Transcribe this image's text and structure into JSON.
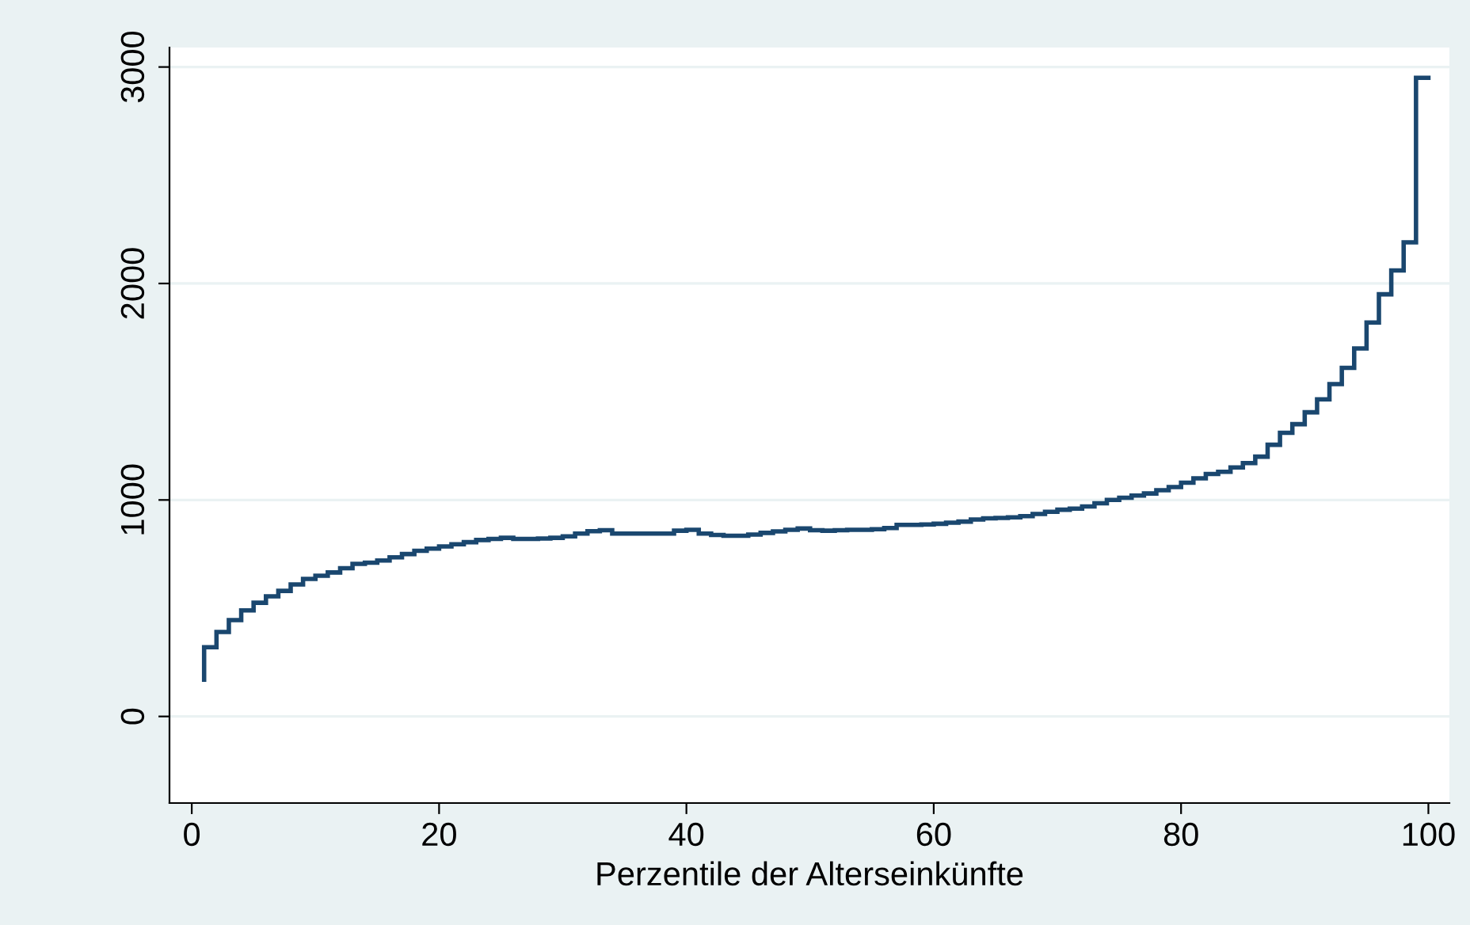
{
  "chart_data": {
    "type": "step",
    "xlabel": "Perzentile der Alterseinkünfte",
    "x": [
      1,
      2,
      3,
      4,
      5,
      6,
      7,
      8,
      9,
      10,
      11,
      12,
      13,
      14,
      15,
      16,
      17,
      18,
      19,
      20,
      21,
      22,
      23,
      24,
      25,
      26,
      27,
      28,
      29,
      30,
      31,
      32,
      33,
      34,
      35,
      36,
      37,
      38,
      39,
      40,
      41,
      42,
      43,
      44,
      45,
      46,
      47,
      48,
      49,
      50,
      51,
      52,
      53,
      54,
      55,
      56,
      57,
      58,
      59,
      60,
      61,
      62,
      63,
      64,
      65,
      66,
      67,
      68,
      69,
      70,
      71,
      72,
      73,
      74,
      75,
      76,
      77,
      78,
      79,
      80,
      81,
      82,
      83,
      84,
      85,
      86,
      87,
      88,
      89,
      90,
      91,
      92,
      93,
      94,
      95,
      96,
      97,
      98,
      99,
      100
    ],
    "series": [
      {
        "color": "#1a476f",
        "values": [
          170,
          320,
          390,
          445,
          490,
          525,
          555,
          580,
          610,
          635,
          650,
          665,
          685,
          705,
          710,
          720,
          735,
          750,
          765,
          775,
          785,
          795,
          805,
          815,
          820,
          825,
          820,
          820,
          822,
          825,
          832,
          845,
          856,
          860,
          845,
          845,
          845,
          845,
          845,
          858,
          862,
          845,
          838,
          835,
          835,
          840,
          848,
          855,
          862,
          868,
          860,
          858,
          860,
          862,
          862,
          865,
          870,
          885,
          885,
          887,
          890,
          895,
          900,
          910,
          915,
          917,
          920,
          925,
          935,
          945,
          955,
          960,
          970,
          985,
          1000,
          1010,
          1020,
          1030,
          1045,
          1060,
          1080,
          1100,
          1120,
          1130,
          1150,
          1170,
          1200,
          1255,
          1310,
          1350,
          1405,
          1465,
          1535,
          1610,
          1700,
          1820,
          1950,
          2060,
          2190,
          2950
        ]
      }
    ],
    "xlim": [
      -1.8,
      101.7
    ],
    "ylim": [
      -400,
      3090
    ],
    "xticks": [
      0,
      20,
      40,
      60,
      80,
      100
    ],
    "yticks": [
      0,
      1000,
      2000,
      3000
    ],
    "grid": "y",
    "line_style": "solid"
  }
}
